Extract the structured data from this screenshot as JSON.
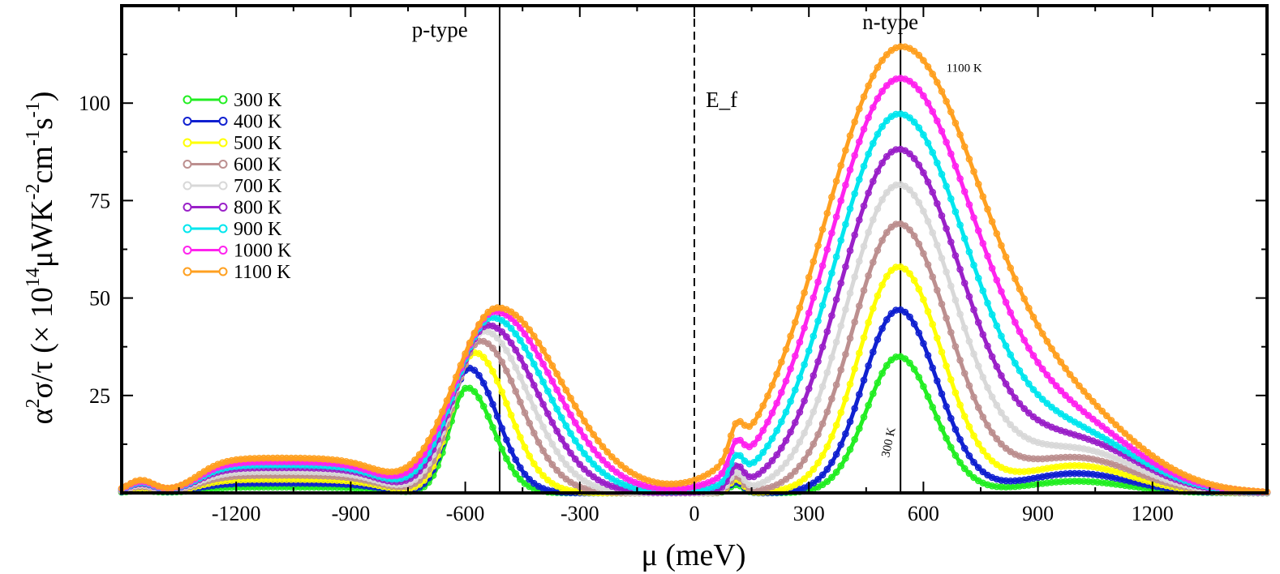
{
  "chart_data": {
    "type": "line",
    "xlabel": "μ (meV)",
    "ylabel": {
      "base": "α",
      "sup1": "2",
      "mid": "σ/τ (× 10",
      "sup2": "14",
      "unit_a": "μWK",
      "sup3": "-2",
      "unit_b": "cm",
      "sup4": "-1",
      "unit_c": "s",
      "sup5": "-1",
      "end": ")"
    },
    "xlim": [
      -1500,
      1500
    ],
    "ylim": [
      0,
      125
    ],
    "xticks": [
      -1200,
      -900,
      -600,
      -300,
      0,
      300,
      600,
      900,
      1200
    ],
    "xtick_labels": [
      "-1200",
      "-900",
      "-600",
      "-300",
      "0",
      "300",
      "600",
      "900",
      "1200"
    ],
    "yticks": [
      25,
      50,
      75,
      100
    ],
    "ytick_labels": [
      "25",
      "50",
      "75",
      "100"
    ],
    "vertical_lines": [
      {
        "x": -510,
        "style": "solid"
      },
      {
        "x": 0,
        "style": "dashed"
      },
      {
        "x": 540,
        "style": "solid"
      }
    ],
    "annotations": [
      {
        "text": "p-type",
        "x": -740,
        "y": 117
      },
      {
        "text": "n-type",
        "x": 440,
        "y": 119
      },
      {
        "text": "E_f",
        "x": 30,
        "y": 99
      },
      {
        "text": "1100 K",
        "x": 660,
        "y": 108
      },
      {
        "text": "300 K",
        "x": 510,
        "y": 9
      }
    ],
    "legend_position": "top-left",
    "series": [
      {
        "name": "300 K",
        "color": "#22ee22",
        "p_peak": 27,
        "p_x": -595,
        "p_w": 55,
        "n_peak": 35,
        "n_x": 535,
        "n_w": 80,
        "shoulder": 3,
        "low": 1.5,
        "tail_w": 135
      },
      {
        "name": "400 K",
        "color": "#1020d0",
        "p_peak": 32,
        "p_x": -590,
        "p_w": 60,
        "n_peak": 47,
        "n_x": 535,
        "n_w": 88,
        "shoulder": 5,
        "low": 2.5,
        "tail_w": 140
      },
      {
        "name": "500 K",
        "color": "#ffff00",
        "p_peak": 36,
        "p_x": -575,
        "p_w": 70,
        "n_peak": 58,
        "n_x": 535,
        "n_w": 100,
        "shoulder": 7,
        "low": 3.5,
        "tail_w": 145
      },
      {
        "name": "600 K",
        "color": "#bc8f8f",
        "p_peak": 39,
        "p_x": -560,
        "p_w": 82,
        "n_peak": 69,
        "n_x": 535,
        "n_w": 115,
        "shoulder": 9,
        "low": 4.5,
        "tail_w": 150
      },
      {
        "name": "700 K",
        "color": "#d8d8d8",
        "p_peak": 41.5,
        "p_x": -550,
        "p_w": 92,
        "n_peak": 79,
        "n_x": 535,
        "n_w": 130,
        "shoulder": 11,
        "low": 5.5,
        "tail_w": 155
      },
      {
        "name": "800 K",
        "color": "#9a20c8",
        "p_peak": 43,
        "p_x": -540,
        "p_w": 102,
        "n_peak": 88,
        "n_x": 535,
        "n_w": 145,
        "shoulder": 13,
        "low": 6.5,
        "tail_w": 160
      },
      {
        "name": "900 K",
        "color": "#00e6ee",
        "p_peak": 45,
        "p_x": -530,
        "p_w": 112,
        "n_peak": 97,
        "n_x": 535,
        "n_w": 160,
        "shoulder": 14,
        "low": 7.2,
        "tail_w": 165
      },
      {
        "name": "1000 K",
        "color": "#ff22ee",
        "p_peak": 46.5,
        "p_x": -522,
        "p_w": 122,
        "n_peak": 106,
        "n_x": 537,
        "n_w": 175,
        "shoulder": 15,
        "low": 8,
        "tail_w": 170
      },
      {
        "name": "1100 K",
        "color": "#ffa020",
        "p_peak": 47.5,
        "p_x": -515,
        "p_w": 132,
        "n_peak": 114,
        "n_x": 540,
        "n_w": 190,
        "shoulder": 16,
        "low": 9,
        "tail_w": 175
      }
    ]
  }
}
